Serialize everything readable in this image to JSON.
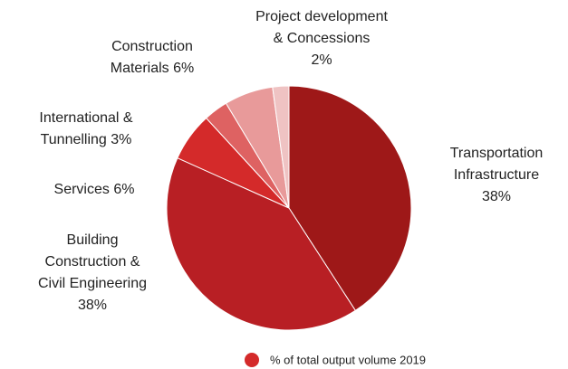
{
  "chart_data": {
    "type": "pie",
    "categories": [
      [
        "Transportation",
        "Infrastructure"
      ],
      [
        "Building",
        "Construction &",
        "Civil Engineering"
      ],
      [
        "Services"
      ],
      [
        "International &",
        "Tunnelling"
      ],
      [
        "Construction",
        "Materials"
      ],
      [
        "Project development",
        "& Concessions"
      ]
    ],
    "series": [
      {
        "name": "% of total output volume 2019",
        "color": "#d42a2a",
        "colors": [
          "#9e1818",
          "#b81f24",
          "#d42a2a",
          "#de6262",
          "#e89a9a",
          "#efc3c3"
        ],
        "values": [
          38,
          38,
          6,
          3,
          6,
          2
        ],
        "value_labels": [
          "38%",
          "38%",
          "6%",
          "3%",
          "6%",
          "2%"
        ]
      }
    ],
    "legend": "bottom"
  }
}
